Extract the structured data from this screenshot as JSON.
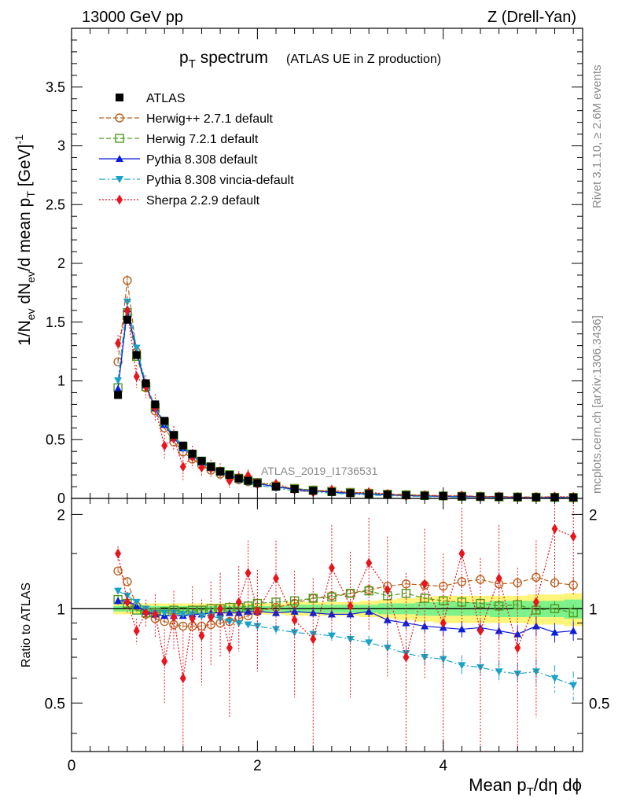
{
  "header": {
    "energy_label": "13000 GeV pp",
    "process_label": "Z (Drell-Yan)"
  },
  "side_labels": {
    "rivet": "Rivet 3.1.10, ≥ 2.6M events",
    "mcplots": "mcplots.cern.ch [arXiv:1306.3436]"
  },
  "chart_data": [
    {
      "type": "scatter",
      "panel": "main",
      "title_main": "p",
      "title_sub": "T",
      "title_rest": " spectrum",
      "title_paren": "(ATLAS UE in Z production)",
      "analysis_tag": "ATLAS_2019_I1736531",
      "ylabel": "1/N_ev dN_ev/d mean p_T [GeV]^-1",
      "ylabel_parts": [
        "1/N",
        "ev",
        " dN",
        "ev",
        "/d mean p",
        "T",
        " [GeV]",
        "-1"
      ],
      "xlim": [
        0,
        5.5
      ],
      "ylim": [
        0,
        4.0
      ],
      "y_ticks": [
        "0",
        "0.5",
        "1",
        "1.5",
        "2",
        "2.5",
        "3",
        "3.5"
      ],
      "y_tick_values": [
        0,
        0.5,
        1,
        1.5,
        2,
        2.5,
        3,
        3.5
      ],
      "x": [
        0.5,
        0.6,
        0.7,
        0.8,
        0.9,
        1.0,
        1.1,
        1.2,
        1.3,
        1.4,
        1.5,
        1.6,
        1.7,
        1.8,
        1.9,
        2.0,
        2.2,
        2.4,
        2.6,
        2.8,
        3.0,
        3.2,
        3.4,
        3.6,
        3.8,
        4.0,
        4.2,
        4.4,
        4.6,
        4.8,
        5.0,
        5.2,
        5.4
      ],
      "atlas": [
        0.88,
        1.52,
        1.22,
        0.98,
        0.8,
        0.66,
        0.54,
        0.45,
        0.38,
        0.32,
        0.27,
        0.23,
        0.2,
        0.17,
        0.15,
        0.13,
        0.1,
        0.08,
        0.065,
        0.055,
        0.045,
        0.038,
        0.032,
        0.027,
        0.023,
        0.02,
        0.017,
        0.015,
        0.013,
        0.011,
        0.01,
        0.009,
        0.008
      ],
      "legend": [
        {
          "label": "ATLAS",
          "color": "#000000",
          "marker": "square-filled",
          "line": "none"
        },
        {
          "label": "Herwig++ 2.7.1 default",
          "color": "#b8621e",
          "marker": "circle-open",
          "line": "dashed"
        },
        {
          "label": "Herwig 7.2.1 default",
          "color": "#4f9a1e",
          "marker": "square-open",
          "line": "dashed"
        },
        {
          "label": "Pythia 8.308 default",
          "color": "#0a1ed8",
          "marker": "triangle-up-filled",
          "line": "solid"
        },
        {
          "label": "Pythia 8.308 vincia-default",
          "color": "#1aa3c8",
          "marker": "triangle-down-filled",
          "line": "dashdot"
        },
        {
          "label": "Sherpa 2.2.9 default",
          "color": "#e8141e",
          "marker": "diamond-filled",
          "line": "dotted"
        }
      ]
    },
    {
      "type": "line",
      "panel": "ratio",
      "ylabel": "Ratio to ATLAS",
      "xlabel_main": "Mean p",
      "xlabel_sub": "T",
      "xlabel_rest": "/dη dϕ",
      "xlim": [
        0,
        5.5
      ],
      "ylim": [
        0.35,
        2.25
      ],
      "x_ticks": [
        "0",
        "2",
        "4"
      ],
      "x_tick_values": [
        0,
        2,
        4
      ],
      "y_ticks": [
        "0.5",
        "1",
        "2"
      ],
      "y_tick_values": [
        0.5,
        1,
        2
      ],
      "band_yellow_halfwidth": [
        0.04,
        0.04,
        0.04,
        0.04,
        0.04,
        0.04,
        0.04,
        0.04,
        0.04,
        0.04,
        0.04,
        0.04,
        0.04,
        0.04,
        0.04,
        0.04,
        0.04,
        0.05,
        0.05,
        0.05,
        0.05,
        0.06,
        0.07,
        0.08,
        0.09,
        0.1,
        0.1,
        0.1,
        0.1,
        0.1,
        0.11,
        0.11,
        0.12
      ],
      "band_green_halfwidth": [
        0.02,
        0.02,
        0.02,
        0.02,
        0.02,
        0.02,
        0.02,
        0.02,
        0.02,
        0.02,
        0.02,
        0.02,
        0.02,
        0.02,
        0.02,
        0.02,
        0.02,
        0.03,
        0.03,
        0.03,
        0.03,
        0.03,
        0.04,
        0.04,
        0.05,
        0.05,
        0.05,
        0.05,
        0.06,
        0.06,
        0.06,
        0.06,
        0.07
      ],
      "series": [
        {
          "name": "Herwig++ 2.7.1 default",
          "color": "#b8621e",
          "marker": "circle-open",
          "dash": "6,3",
          "values": [
            1.32,
            1.22,
            1.02,
            0.96,
            0.93,
            0.91,
            0.89,
            0.88,
            0.88,
            0.88,
            0.89,
            0.9,
            0.91,
            0.93,
            0.95,
            0.98,
            1.01,
            1.04,
            1.08,
            1.1,
            1.12,
            1.15,
            1.18,
            1.2,
            1.19,
            1.18,
            1.22,
            1.24,
            1.2,
            1.21,
            1.26,
            1.21,
            1.19
          ],
          "errors": [
            0.03,
            0.03,
            0.02,
            0.02,
            0.02,
            0.02,
            0.02,
            0.02,
            0.02,
            0.02,
            0.02,
            0.02,
            0.02,
            0.02,
            0.02,
            0.03,
            0.03,
            0.03,
            0.03,
            0.03,
            0.03,
            0.04,
            0.04,
            0.04,
            0.04,
            0.05,
            0.05,
            0.05,
            0.05,
            0.05,
            0.06,
            0.06,
            0.06
          ]
        },
        {
          "name": "Herwig 7.2.1 default",
          "color": "#4f9a1e",
          "marker": "square-open",
          "dash": "6,3",
          "values": [
            1.07,
            1.04,
            0.99,
            0.97,
            0.97,
            0.98,
            0.99,
            0.98,
            0.99,
            0.99,
            1.0,
            1.0,
            1.01,
            1.01,
            1.02,
            1.04,
            1.05,
            1.06,
            1.08,
            1.09,
            1.12,
            1.14,
            1.1,
            1.12,
            1.08,
            1.06,
            1.05,
            1.04,
            1.02,
            1.03,
            0.99,
            1.0,
            0.97
          ],
          "errors": [
            0.03,
            0.03,
            0.02,
            0.02,
            0.02,
            0.02,
            0.02,
            0.02,
            0.02,
            0.02,
            0.02,
            0.02,
            0.02,
            0.02,
            0.02,
            0.03,
            0.03,
            0.03,
            0.03,
            0.03,
            0.03,
            0.04,
            0.04,
            0.04,
            0.04,
            0.05,
            0.05,
            0.05,
            0.05,
            0.05,
            0.06,
            0.06,
            0.06
          ]
        },
        {
          "name": "Pythia 8.308 default",
          "color": "#0a1ed8",
          "marker": "triangle-up-filled",
          "dash": "",
          "values": [
            1.06,
            1.06,
            1.02,
            0.98,
            0.96,
            0.95,
            0.95,
            0.95,
            0.96,
            0.96,
            0.97,
            0.97,
            0.97,
            0.97,
            0.98,
            0.98,
            0.97,
            0.98,
            0.97,
            0.96,
            0.96,
            0.98,
            0.92,
            0.9,
            0.88,
            0.87,
            0.86,
            0.87,
            0.85,
            0.83,
            0.88,
            0.84,
            0.85
          ],
          "errors": [
            0.03,
            0.03,
            0.02,
            0.02,
            0.02,
            0.02,
            0.02,
            0.02,
            0.02,
            0.02,
            0.02,
            0.02,
            0.02,
            0.02,
            0.02,
            0.03,
            0.03,
            0.03,
            0.03,
            0.03,
            0.03,
            0.04,
            0.04,
            0.04,
            0.04,
            0.05,
            0.05,
            0.05,
            0.05,
            0.05,
            0.06,
            0.06,
            0.06
          ]
        },
        {
          "name": "Pythia 8.308 vincia-default",
          "color": "#1aa3c8",
          "marker": "triangle-down-filled",
          "dash": "8,3,2,3",
          "values": [
            1.14,
            1.1,
            1.05,
            1.0,
            0.97,
            0.97,
            0.97,
            0.96,
            0.96,
            0.95,
            0.95,
            0.93,
            0.91,
            0.9,
            0.89,
            0.88,
            0.86,
            0.84,
            0.83,
            0.82,
            0.8,
            0.78,
            0.75,
            0.72,
            0.7,
            0.69,
            0.66,
            0.65,
            0.63,
            0.62,
            0.63,
            0.6,
            0.57
          ],
          "errors": [
            0.03,
            0.03,
            0.02,
            0.02,
            0.02,
            0.02,
            0.02,
            0.02,
            0.02,
            0.02,
            0.02,
            0.02,
            0.02,
            0.02,
            0.02,
            0.03,
            0.03,
            0.03,
            0.03,
            0.03,
            0.03,
            0.04,
            0.04,
            0.04,
            0.04,
            0.05,
            0.05,
            0.05,
            0.05,
            0.05,
            0.06,
            0.06,
            0.06
          ]
        },
        {
          "name": "Sherpa 2.2.9 default",
          "color": "#e8141e",
          "marker": "diamond-filled",
          "dash": "2,2",
          "values": [
            1.5,
            1.05,
            0.85,
            0.97,
            0.96,
            0.68,
            0.94,
            0.6,
            0.93,
            0.82,
            0.94,
            1.0,
            0.75,
            1.05,
            1.3,
            0.98,
            1.25,
            0.92,
            0.8,
            1.35,
            1.02,
            1.4,
            1.15,
            0.7,
            1.2,
            0.9,
            1.5,
            0.85,
            1.25,
            0.75,
            1.05,
            1.8,
            1.7
          ],
          "errors": [
            0.08,
            0.08,
            0.08,
            0.1,
            0.15,
            0.18,
            0.2,
            0.25,
            0.25,
            0.25,
            0.28,
            0.3,
            0.3,
            0.32,
            0.35,
            0.35,
            0.4,
            0.4,
            0.45,
            0.5,
            0.5,
            0.55,
            0.55,
            0.6,
            0.6,
            0.6,
            0.6,
            0.6,
            0.6,
            0.6,
            0.6,
            0.6,
            0.6
          ]
        }
      ]
    }
  ]
}
